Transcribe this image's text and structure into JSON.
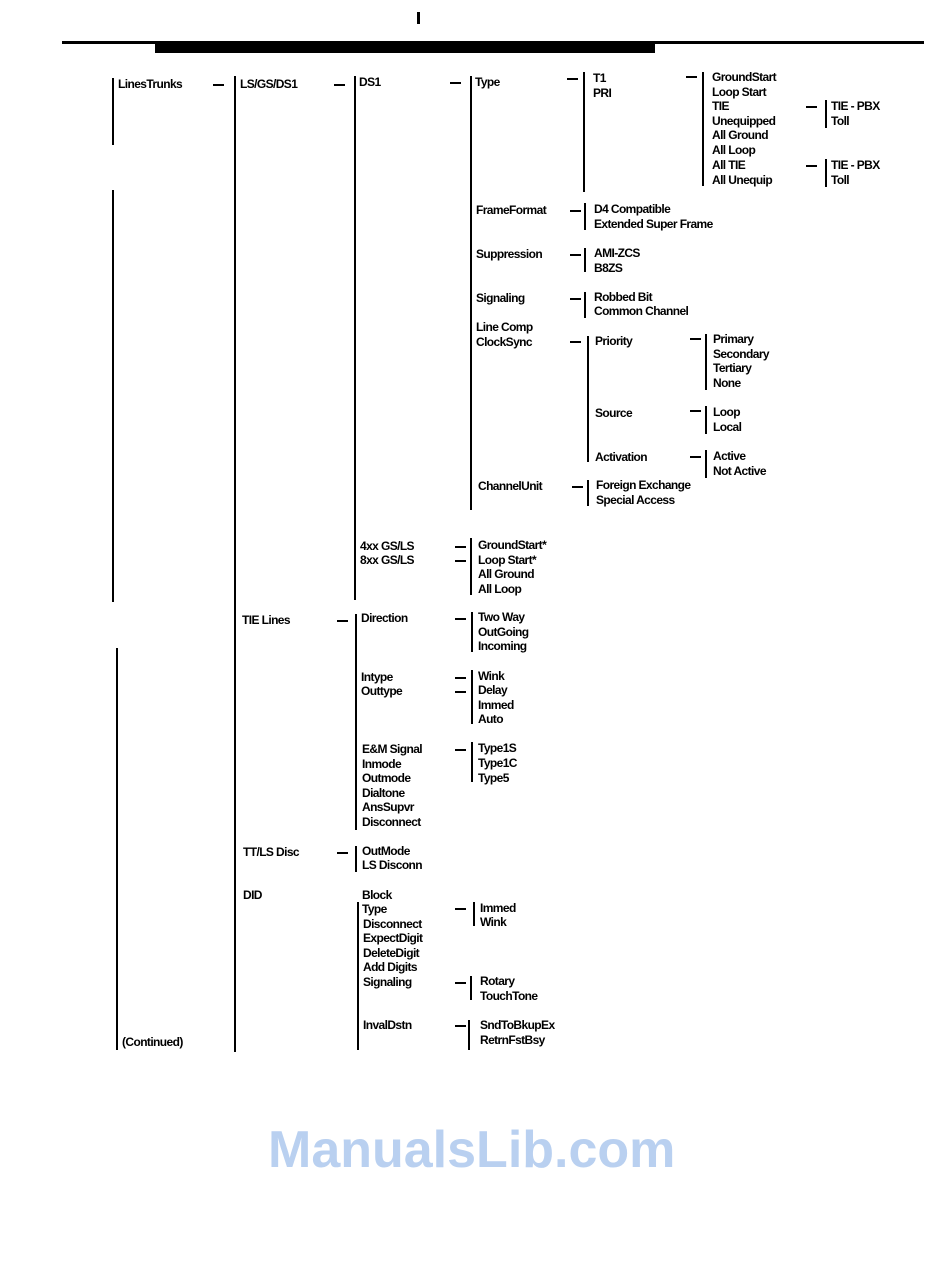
{
  "tree": {
    "root": "LinesTrunks",
    "continued": "(Continued)",
    "l2": [
      "LS/GS/DS1",
      "TIE Lines",
      "TT/LS Disc",
      "DID"
    ],
    "ds_group": [
      "DS1",
      "4xx GS/LS",
      "8xx GS/LS"
    ],
    "ds1": [
      "Type",
      "FrameFormat",
      "Suppression",
      "Signaling",
      "Line Comp",
      "ClockSync",
      "ChannelUnit"
    ],
    "type": [
      "T1",
      "PRI"
    ],
    "t1": [
      "GroundStart",
      "Loop Start",
      "TIE",
      "Unequipped",
      "All Ground",
      "All Loop",
      "All TIE",
      "All Unequip"
    ],
    "tie_sub": [
      "TIE - PBX",
      "Toll"
    ],
    "frame_format": [
      "D4 Compatible",
      "Extended Super Frame"
    ],
    "suppression": [
      "AMI-ZCS",
      "B8ZS"
    ],
    "signaling": [
      "Robbed Bit",
      "Common Channel"
    ],
    "clocksync": [
      "Priority",
      "Source",
      "Activation"
    ],
    "priority": [
      "Primary",
      "Secondary",
      "Tertiary",
      "None"
    ],
    "source": [
      "Loop",
      "Local"
    ],
    "activation": [
      "Active",
      "Not Active"
    ],
    "channel_unit": [
      "Foreign Exchange",
      "Special Access"
    ],
    "gsls": [
      "GroundStart*",
      "Loop Start*",
      "All Ground",
      "All Loop"
    ],
    "tie_lines": [
      "Direction",
      "Intype",
      "Outtype",
      "E&M Signal",
      "Inmode",
      "Outmode",
      "Dialtone",
      "AnsSupvr",
      "Disconnect"
    ],
    "direction": [
      "Two Way",
      "OutGoing",
      "Incoming"
    ],
    "intype": [
      "Wink",
      "Delay",
      "Immed",
      "Auto"
    ],
    "em_signal": [
      "Type1S",
      "Type1C",
      "Type5"
    ],
    "ttls": [
      "OutMode",
      "LS Disconn"
    ],
    "did": [
      "Block",
      "Type",
      "Disconnect",
      "ExpectDigit",
      "DeleteDigit",
      "Add Digits",
      "Signaling",
      "InvalDstn"
    ],
    "did_type": [
      "Immed",
      "Wink"
    ],
    "did_signaling": [
      "Rotary",
      "TouchTone"
    ],
    "invaldstn": [
      "SndToBkupEx",
      "RetrnFstBsy"
    ]
  },
  "watermark": "ManualsLib.com"
}
